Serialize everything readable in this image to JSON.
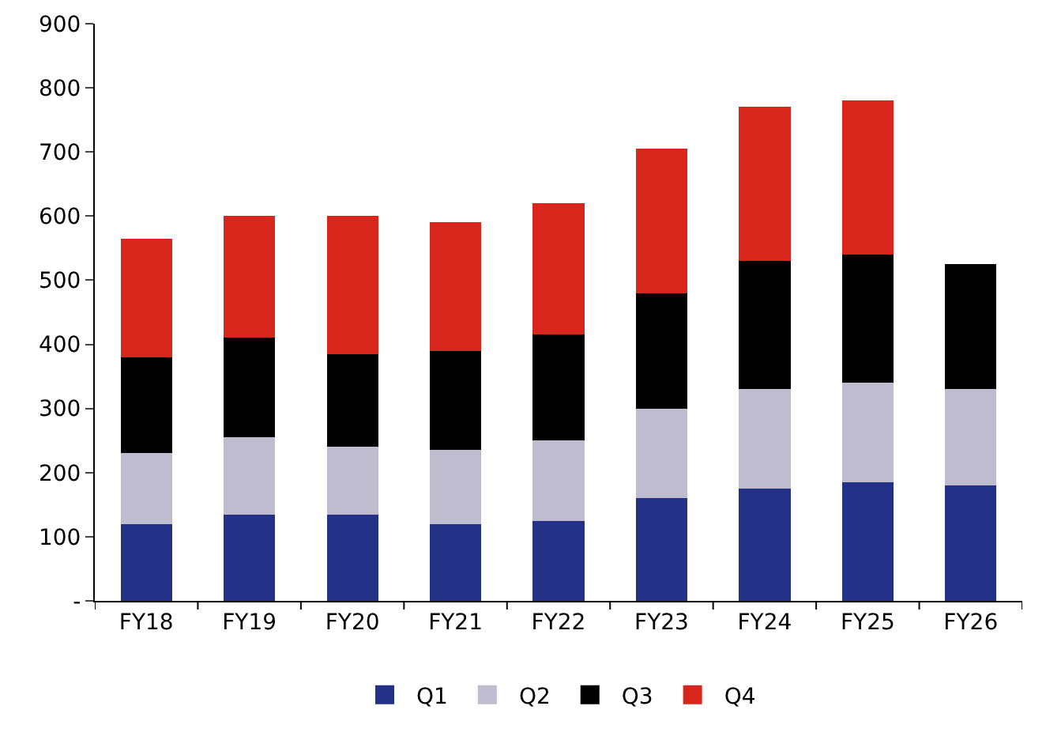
{
  "chart_data": {
    "type": "bar",
    "stacked": true,
    "categories": [
      "FY18",
      "FY19",
      "FY20",
      "FY21",
      "FY22",
      "FY23",
      "FY24",
      "FY25",
      "FY26"
    ],
    "series": [
      {
        "name": "Q1",
        "color": "#233286",
        "values": [
          120,
          135,
          135,
          120,
          125,
          160,
          175,
          185,
          180
        ]
      },
      {
        "name": "Q2",
        "color": "#c0bccf",
        "values": [
          110,
          120,
          105,
          115,
          125,
          140,
          155,
          155,
          150
        ]
      },
      {
        "name": "Q3",
        "color": "#000000",
        "values": [
          150,
          155,
          145,
          155,
          165,
          180,
          200,
          200,
          195
        ]
      },
      {
        "name": "Q4",
        "color": "#d9261c",
        "values": [
          185,
          190,
          215,
          200,
          205,
          225,
          240,
          240,
          null
        ]
      }
    ],
    "ylim": [
      0,
      900
    ],
    "yticks": [
      {
        "value": 0,
        "label": "-"
      },
      100,
      200,
      300,
      400,
      500,
      600,
      700,
      800,
      900
    ],
    "grid": false,
    "legend": "bottom"
  }
}
